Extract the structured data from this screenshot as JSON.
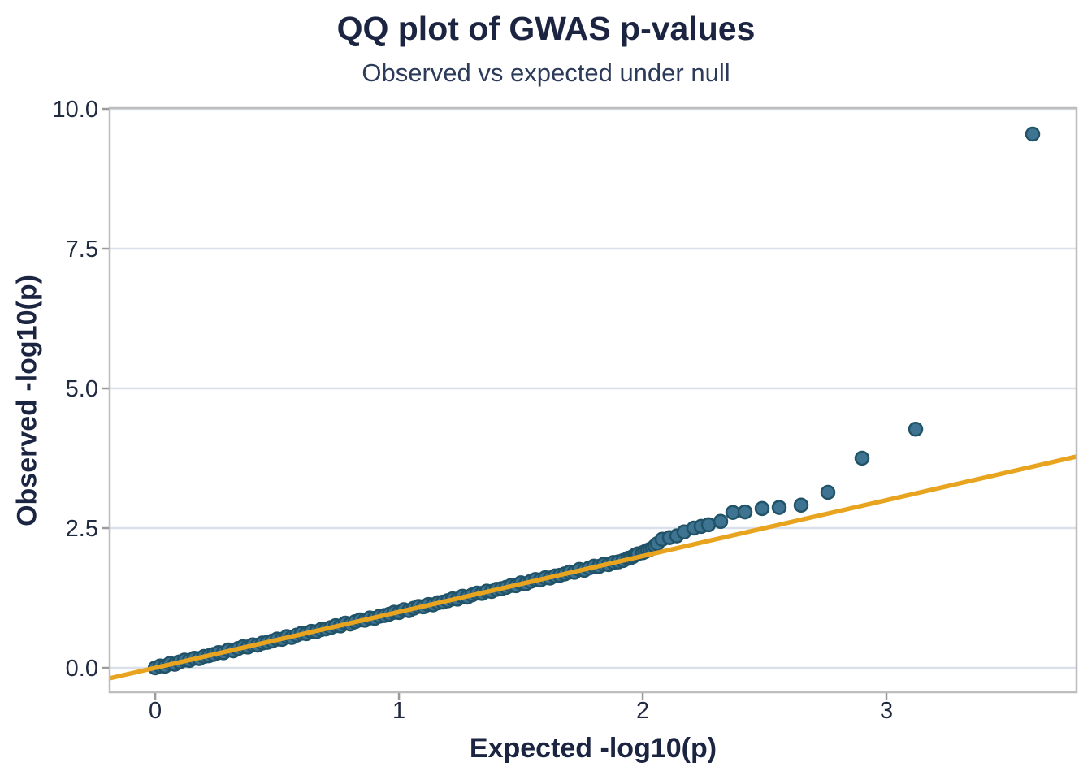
{
  "chart_data": {
    "type": "scatter",
    "title": "QQ plot of GWAS p-values",
    "subtitle": "Observed vs expected under null",
    "xlabel": "Expected -log10(p)",
    "ylabel": "Observed -log10(p)",
    "xlim": [
      -0.187,
      3.78
    ],
    "ylim": [
      -0.436,
      10.015
    ],
    "xticks": [
      0,
      1,
      2,
      3
    ],
    "xtick_labels": [
      "0",
      "1",
      "2",
      "3"
    ],
    "yticks": [
      0,
      2.5,
      5,
      7.5,
      10
    ],
    "ytick_labels": [
      "0.0",
      "2.5",
      "5.0",
      "7.5",
      "10.0"
    ],
    "grid": "horizontal-only",
    "legend": "none",
    "reference_line": {
      "type": "identity",
      "slope": 1,
      "intercept": 0,
      "color": "#e9a41f",
      "width": 5.5
    },
    "series": [
      {
        "name": "snp-quantiles",
        "marker": "circle",
        "radius": 8,
        "fill": "#3e7391",
        "stroke": "#215368",
        "stroke_width": 2.5,
        "points": [
          [
            0.0,
            0.0
          ],
          [
            0.02,
            0.034
          ],
          [
            0.04,
            0.03
          ],
          [
            0.06,
            0.08
          ],
          [
            0.08,
            0.064
          ],
          [
            0.1,
            0.106
          ],
          [
            0.12,
            0.138
          ],
          [
            0.14,
            0.132
          ],
          [
            0.16,
            0.172
          ],
          [
            0.18,
            0.166
          ],
          [
            0.2,
            0.204
          ],
          [
            0.22,
            0.216
          ],
          [
            0.24,
            0.24
          ],
          [
            0.26,
            0.274
          ],
          [
            0.28,
            0.27
          ],
          [
            0.3,
            0.32
          ],
          [
            0.32,
            0.304
          ],
          [
            0.34,
            0.346
          ],
          [
            0.36,
            0.378
          ],
          [
            0.38,
            0.372
          ],
          [
            0.4,
            0.412
          ],
          [
            0.42,
            0.406
          ],
          [
            0.44,
            0.444
          ],
          [
            0.46,
            0.456
          ],
          [
            0.48,
            0.48
          ],
          [
            0.5,
            0.514
          ],
          [
            0.52,
            0.51
          ],
          [
            0.54,
            0.56
          ],
          [
            0.56,
            0.544
          ],
          [
            0.58,
            0.586
          ],
          [
            0.6,
            0.618
          ],
          [
            0.62,
            0.612
          ],
          [
            0.64,
            0.652
          ],
          [
            0.66,
            0.646
          ],
          [
            0.68,
            0.684
          ],
          [
            0.7,
            0.696
          ],
          [
            0.72,
            0.72
          ],
          [
            0.74,
            0.754
          ],
          [
            0.76,
            0.75
          ],
          [
            0.78,
            0.8
          ],
          [
            0.8,
            0.784
          ],
          [
            0.82,
            0.826
          ],
          [
            0.84,
            0.858
          ],
          [
            0.86,
            0.852
          ],
          [
            0.88,
            0.892
          ],
          [
            0.9,
            0.886
          ],
          [
            0.92,
            0.924
          ],
          [
            0.94,
            0.936
          ],
          [
            0.96,
            0.96
          ],
          [
            0.98,
            0.994
          ],
          [
            1.0,
            0.99
          ],
          [
            1.02,
            1.04
          ],
          [
            1.04,
            1.024
          ],
          [
            1.06,
            1.066
          ],
          [
            1.08,
            1.098
          ],
          [
            1.1,
            1.092
          ],
          [
            1.12,
            1.132
          ],
          [
            1.14,
            1.126
          ],
          [
            1.16,
            1.164
          ],
          [
            1.18,
            1.176
          ],
          [
            1.2,
            1.2
          ],
          [
            1.22,
            1.234
          ],
          [
            1.24,
            1.23
          ],
          [
            1.26,
            1.28
          ],
          [
            1.28,
            1.264
          ],
          [
            1.3,
            1.306
          ],
          [
            1.32,
            1.338
          ],
          [
            1.34,
            1.332
          ],
          [
            1.36,
            1.372
          ],
          [
            1.38,
            1.366
          ],
          [
            1.4,
            1.404
          ],
          [
            1.42,
            1.416
          ],
          [
            1.44,
            1.44
          ],
          [
            1.46,
            1.474
          ],
          [
            1.48,
            1.47
          ],
          [
            1.5,
            1.52
          ],
          [
            1.52,
            1.504
          ],
          [
            1.54,
            1.546
          ],
          [
            1.56,
            1.578
          ],
          [
            1.58,
            1.572
          ],
          [
            1.6,
            1.612
          ],
          [
            1.62,
            1.606
          ],
          [
            1.64,
            1.644
          ],
          [
            1.66,
            1.656
          ],
          [
            1.68,
            1.68
          ],
          [
            1.7,
            1.714
          ],
          [
            1.72,
            1.71
          ],
          [
            1.74,
            1.76
          ],
          [
            1.76,
            1.744
          ],
          [
            1.78,
            1.786
          ],
          [
            1.8,
            1.818
          ],
          [
            1.82,
            1.812
          ],
          [
            1.84,
            1.852
          ],
          [
            1.86,
            1.846
          ],
          [
            1.88,
            1.884
          ],
          [
            1.9,
            1.896
          ],
          [
            1.92,
            1.92
          ],
          [
            1.94,
            1.96
          ],
          [
            1.95,
            1.97
          ],
          [
            1.96,
            1.99
          ],
          [
            1.97,
            2.02
          ],
          [
            1.98,
            2.04
          ],
          [
            2.0,
            2.06
          ],
          [
            2.01,
            2.08
          ],
          [
            2.02,
            2.1
          ],
          [
            2.03,
            2.12
          ],
          [
            2.04,
            2.14
          ],
          [
            2.05,
            2.18
          ],
          [
            2.06,
            2.22
          ],
          [
            2.08,
            2.3
          ],
          [
            2.11,
            2.33
          ],
          [
            2.14,
            2.36
          ],
          [
            2.17,
            2.43
          ],
          [
            2.21,
            2.5
          ],
          [
            2.24,
            2.53
          ],
          [
            2.27,
            2.56
          ],
          [
            2.32,
            2.62
          ],
          [
            2.37,
            2.78
          ],
          [
            2.42,
            2.79
          ],
          [
            2.49,
            2.85
          ],
          [
            2.56,
            2.87
          ],
          [
            2.65,
            2.91
          ],
          [
            2.76,
            3.14
          ],
          [
            2.9,
            3.75
          ],
          [
            3.12,
            4.27
          ],
          [
            3.6,
            9.55
          ]
        ]
      }
    ],
    "colors": {
      "background": "#ffffff",
      "title_text": "#1b2440",
      "subtitle_text": "#2c3b5a",
      "axis_title_text": "#1b2440",
      "tick_label_text": "#202a40",
      "gridline": "#d9e0ea",
      "panel_border": "#bdbdbd",
      "tick_mark": "#9b9b9b",
      "point_fill": "#3e7391",
      "point_stroke": "#215368",
      "reference_line": "#e9a41f"
    }
  }
}
